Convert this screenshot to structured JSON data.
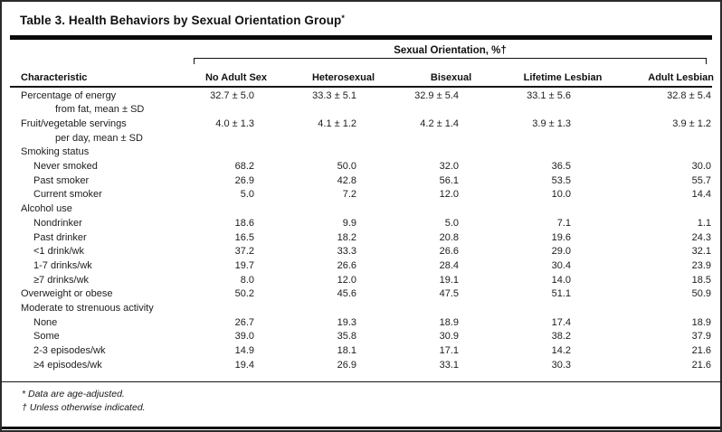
{
  "table": {
    "title": "Table 3. Health Behaviors by Sexual Orientation Group",
    "title_marker": "*",
    "spanner": "Sexual Orientation, %†",
    "columns": [
      "Characteristic",
      "No Adult Sex",
      "Heterosexual",
      "Bisexual",
      "Lifetime Lesbian",
      "Adult Lesbian"
    ],
    "rows": [
      {
        "label": "Percentage of energy",
        "label2": "from fat, mean ± SD",
        "indent": 0,
        "values": [
          "32.7 ± 5.0",
          "33.3 ± 5.1",
          "32.9 ± 5.4",
          "33.1 ± 5.6",
          "32.8 ± 5.4"
        ]
      },
      {
        "label": "Fruit/vegetable servings",
        "label2": "per day, mean ± SD",
        "indent": 0,
        "values": [
          "4.0 ± 1.3",
          "4.1 ± 1.2",
          "4.2 ± 1.4",
          "3.9 ± 1.3",
          "3.9 ± 1.2"
        ]
      },
      {
        "label": "Smoking status",
        "indent": 0,
        "values": [
          "",
          "",
          "",
          "",
          ""
        ]
      },
      {
        "label": "Never smoked",
        "indent": 1,
        "values": [
          "68.2",
          "50.0",
          "32.0",
          "36.5",
          "30.0"
        ]
      },
      {
        "label": "Past smoker",
        "indent": 1,
        "values": [
          "26.9",
          "42.8",
          "56.1",
          "53.5",
          "55.7"
        ]
      },
      {
        "label": "Current smoker",
        "indent": 1,
        "values": [
          "5.0",
          "7.2",
          "12.0",
          "10.0",
          "14.4"
        ]
      },
      {
        "label": "Alcohol use",
        "indent": 0,
        "values": [
          "",
          "",
          "",
          "",
          ""
        ]
      },
      {
        "label": "Nondrinker",
        "indent": 1,
        "values": [
          "18.6",
          "9.9",
          "5.0",
          "7.1",
          "1.1"
        ]
      },
      {
        "label": "Past drinker",
        "indent": 1,
        "values": [
          "16.5",
          "18.2",
          "20.8",
          "19.6",
          "24.3"
        ]
      },
      {
        "label": "<1 drink/wk",
        "indent": 1,
        "values": [
          "37.2",
          "33.3",
          "26.6",
          "29.0",
          "32.1"
        ]
      },
      {
        "label": "1-7 drinks/wk",
        "indent": 1,
        "values": [
          "19.7",
          "26.6",
          "28.4",
          "30.4",
          "23.9"
        ]
      },
      {
        "label": "≥7 drinks/wk",
        "indent": 1,
        "values": [
          "8.0",
          "12.0",
          "19.1",
          "14.0",
          "18.5"
        ]
      },
      {
        "label": "Overweight or obese",
        "indent": 0,
        "values": [
          "50.2",
          "45.6",
          "47.5",
          "51.1",
          "50.9"
        ]
      },
      {
        "label": "Moderate to strenuous activity",
        "indent": 0,
        "values": [
          "",
          "",
          "",
          "",
          ""
        ]
      },
      {
        "label": "None",
        "indent": 1,
        "values": [
          "26.7",
          "19.3",
          "18.9",
          "17.4",
          "18.9"
        ]
      },
      {
        "label": "Some",
        "indent": 1,
        "values": [
          "39.0",
          "35.8",
          "30.9",
          "38.2",
          "37.9"
        ]
      },
      {
        "label": "2-3 episodes/wk",
        "indent": 1,
        "values": [
          "14.9",
          "18.1",
          "17.1",
          "14.2",
          "21.6"
        ]
      },
      {
        "label": "≥4 episodes/wk",
        "indent": 1,
        "values": [
          "19.4",
          "26.9",
          "33.1",
          "30.3",
          "21.6"
        ]
      }
    ],
    "footnotes": [
      "* Data are age-adjusted.",
      "† Unless otherwise indicated."
    ]
  }
}
